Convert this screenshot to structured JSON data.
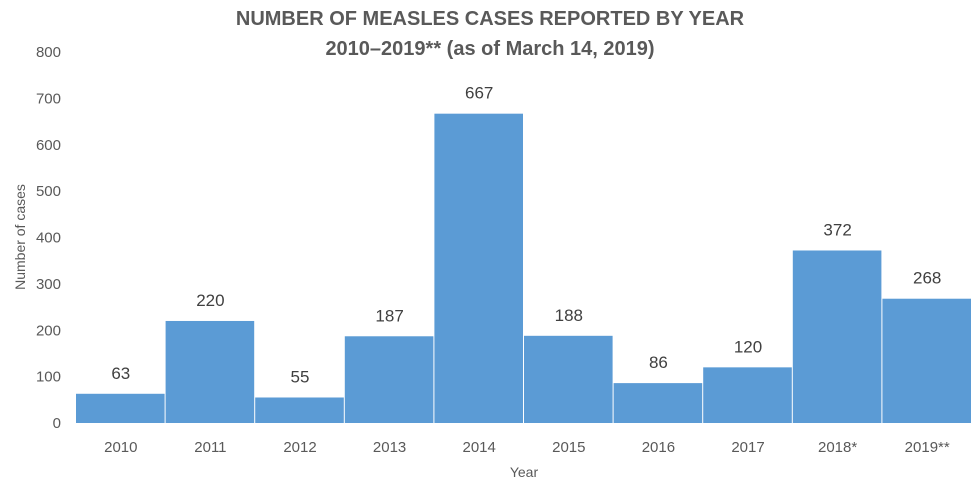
{
  "chart_data": {
    "type": "bar",
    "title": "NUMBER OF MEASLES CASES REPORTED BY YEAR",
    "subtitle": "2010–2019** (as of March 14, 2019)",
    "xlabel": "Year",
    "ylabel": "Number of cases",
    "categories": [
      "2010",
      "2011",
      "2012",
      "2013",
      "2014",
      "2015",
      "2016",
      "2017",
      "2018*",
      "2019**"
    ],
    "values": [
      63,
      220,
      55,
      187,
      667,
      188,
      86,
      120,
      372,
      268
    ],
    "ylim": [
      0,
      800
    ],
    "yticks": [
      0,
      100,
      200,
      300,
      400,
      500,
      600,
      700,
      800
    ],
    "grid": false,
    "bar_color": "#5b9bd5",
    "data_labels": true
  }
}
